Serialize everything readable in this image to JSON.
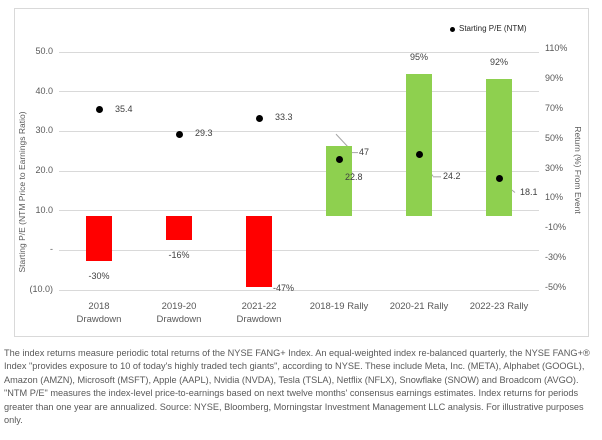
{
  "chart_data": {
    "type": "bar",
    "subtype": "combo bar (returns, right axis) + scatter dots (P/E, left axis)",
    "title": "",
    "grid": "horizontal gridlines on, vertical off",
    "legend": {
      "position": "top-right inside plot",
      "entries": [
        {
          "marker": "dot",
          "color": "#000000",
          "label": "Starting P/E (NTM)"
        }
      ]
    },
    "left_axis": {
      "title": "Starting P/E (NTM Price to Earnings Ratio)",
      "min": -10,
      "max": 50,
      "tick_values": [
        50,
        40,
        30,
        20,
        10,
        0,
        -10
      ],
      "tick_labels": [
        "50.0",
        "40.0",
        "30.0",
        "20.0",
        "10.0",
        "-",
        "(10.0)"
      ]
    },
    "right_axis": {
      "title": "Return (%) From Event",
      "min": -50,
      "max": 110,
      "tick_values": [
        110,
        90,
        70,
        50,
        30,
        10,
        -10,
        -30,
        -50
      ],
      "tick_labels": [
        "110%",
        "90%",
        "70%",
        "50%",
        "30%",
        "10%",
        "-10%",
        "-30%",
        "-50%"
      ]
    },
    "colors": {
      "bar_positive": "#8ed04f",
      "bar_negative": "#ff0000",
      "dot": "#000000",
      "gridline": "#d9d9d9",
      "leader_line": "#a6a6a6"
    },
    "categories": [
      "2018 Drawdown",
      "2019-20 Drawdown",
      "2021-22 Drawdown",
      "2018-19 Rally",
      "2020-21 Rally",
      "2022-23 Rally"
    ],
    "series": [
      {
        "name": "Return (%) From Event",
        "type": "bar",
        "axis": "right",
        "values": [
          -30,
          -16,
          -47,
          47,
          95,
          92
        ]
      },
      {
        "name": "Starting P/E (NTM)",
        "type": "scatter",
        "axis": "left",
        "values": [
          35.4,
          29.3,
          33.3,
          22.8,
          24.2,
          18.1
        ]
      }
    ],
    "points": [
      {
        "category": "2018\nDrawdown",
        "return_pct": -30,
        "return_label": "-30%",
        "return_label_pos": "below",
        "pe": 35.4,
        "pe_label": "35.4",
        "pe_label_pos": "right"
      },
      {
        "category": "2019-20\nDrawdown",
        "return_pct": -16,
        "return_label": "-16%",
        "return_label_pos": "below",
        "pe": 29.3,
        "pe_label": "29.3",
        "pe_label_pos": "right"
      },
      {
        "category": "2021-22\nDrawdown",
        "return_pct": -47,
        "return_label": "-47%",
        "return_label_pos": "below-right",
        "pe": 33.3,
        "pe_label": "33.3",
        "pe_label_pos": "right"
      },
      {
        "category": "2018-19 Rally",
        "return_pct": 47,
        "return_label": "47",
        "return_label_pos": "right-leader",
        "pe": 22.8,
        "pe_label": "22.8",
        "pe_label_pos": "below-leader"
      },
      {
        "category": "2020-21 Rally",
        "return_pct": 95,
        "return_label": "95%",
        "return_label_pos": "above",
        "pe": 24.2,
        "pe_label": "24.2",
        "pe_label_pos": "leader-down-far"
      },
      {
        "category": "2022-23 Rally",
        "return_pct": 92,
        "return_label": "92%",
        "return_label_pos": "above",
        "pe": 18.1,
        "pe_label": "18.1",
        "pe_label_pos": "leader-down"
      }
    ]
  },
  "footnote": {
    "text": "The index returns measure periodic total returns of the NYSE FANG+ Index. An equal-weighted index re-balanced quarterly, the NYSE FANG+® Index \"provides exposure to 10 of today's highly traded tech giants\", according to NYSE. These include Meta, Inc. (META), Alphabet (GOOGL), Amazon (AMZN), Microsoft (MSFT), Apple (AAPL), Nvidia (NVDA), Tesla (TSLA), Netflix (NFLX), Snowflake (SNOW) and Broadcom (AVGO). \"NTM P/E\" measures the index-level price-to-earnings based on next twelve months' consensus earnings estimates. Index returns for periods greater than one year are annualized. Source: NYSE, Bloomberg, Morningstar Investment Management LLC analysis. For illustrative purposes only."
  }
}
